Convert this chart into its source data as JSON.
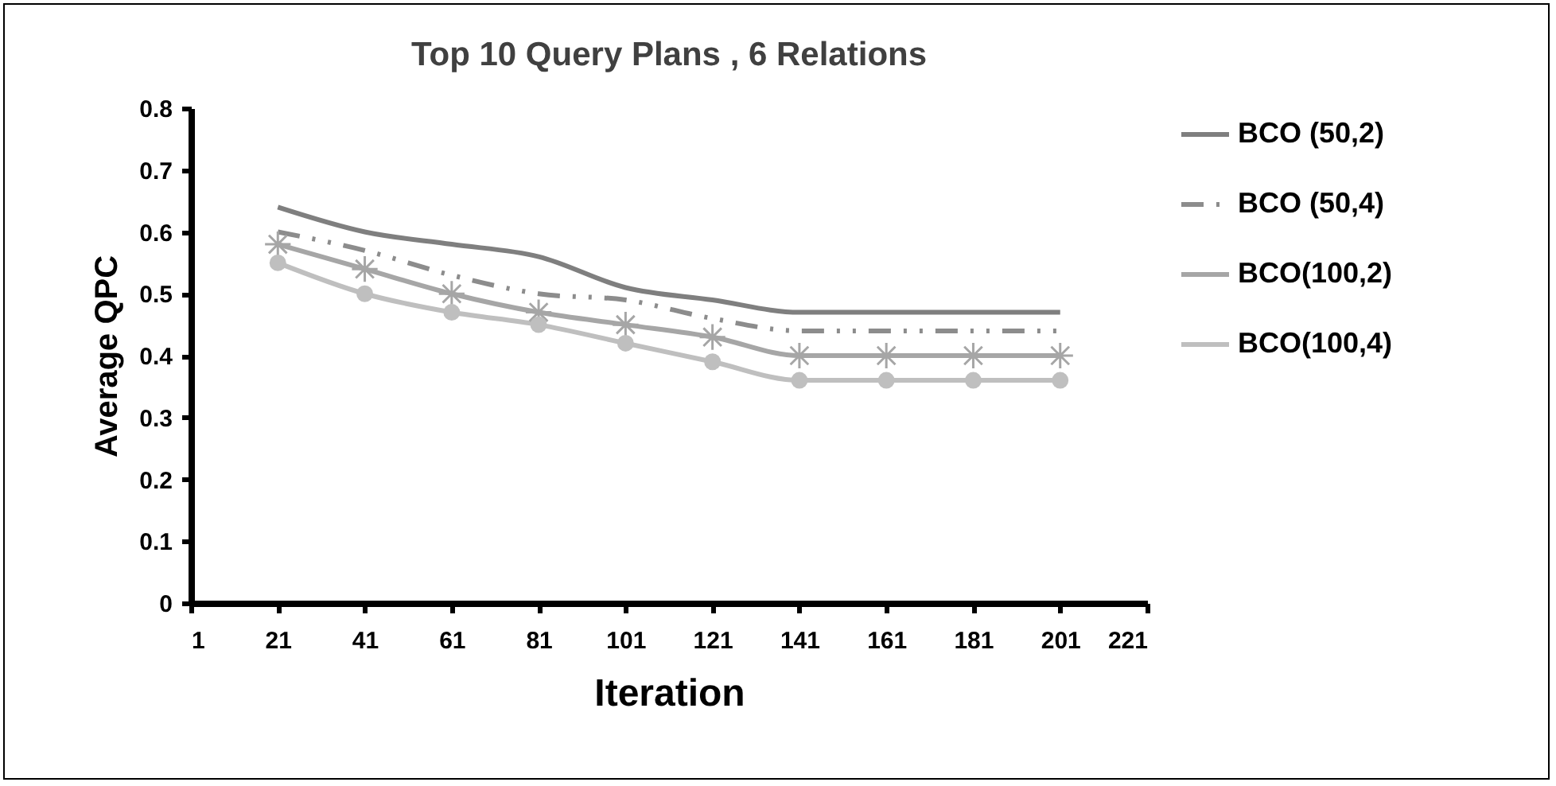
{
  "chart_data": {
    "type": "line",
    "title": "Top 10 Query Plans , 6 Relations",
    "xlabel": "Iteration",
    "ylabel": "Average QPC",
    "x": [
      21,
      41,
      61,
      81,
      101,
      121,
      141,
      161,
      181,
      201
    ],
    "xlim": [
      1,
      221
    ],
    "xticks": [
      1,
      21,
      41,
      61,
      81,
      101,
      121,
      141,
      161,
      181,
      201,
      221
    ],
    "ylim": [
      0,
      0.8
    ],
    "yticks": [
      0,
      0.1,
      0.2,
      0.3,
      0.4,
      0.5,
      0.6,
      0.7,
      0.8
    ],
    "grid": false,
    "legend": "right",
    "series": [
      {
        "name": "BCO (50,2)",
        "color": "#7f7f7f",
        "line_style": "solid",
        "marker": "none",
        "values": [
          0.64,
          0.6,
          0.58,
          0.56,
          0.51,
          0.49,
          0.47,
          0.47,
          0.47,
          0.47
        ]
      },
      {
        "name": "BCO (50,4)",
        "color": "#8c8c8c",
        "line_style": "dashed",
        "marker": "none",
        "values": [
          0.6,
          0.57,
          0.53,
          0.5,
          0.49,
          0.46,
          0.44,
          0.44,
          0.44,
          0.44
        ]
      },
      {
        "name": "BCO(100,2)",
        "color": "#a6a6a6",
        "line_style": "solid",
        "marker": "cross",
        "values": [
          0.58,
          0.54,
          0.5,
          0.47,
          0.45,
          0.43,
          0.4,
          0.4,
          0.4,
          0.4
        ]
      },
      {
        "name": "BCO(100,4)",
        "color": "#bfbfbf",
        "line_style": "solid",
        "marker": "circle",
        "values": [
          0.55,
          0.5,
          0.47,
          0.45,
          0.42,
          0.39,
          0.36,
          0.36,
          0.36,
          0.36
        ]
      }
    ]
  }
}
